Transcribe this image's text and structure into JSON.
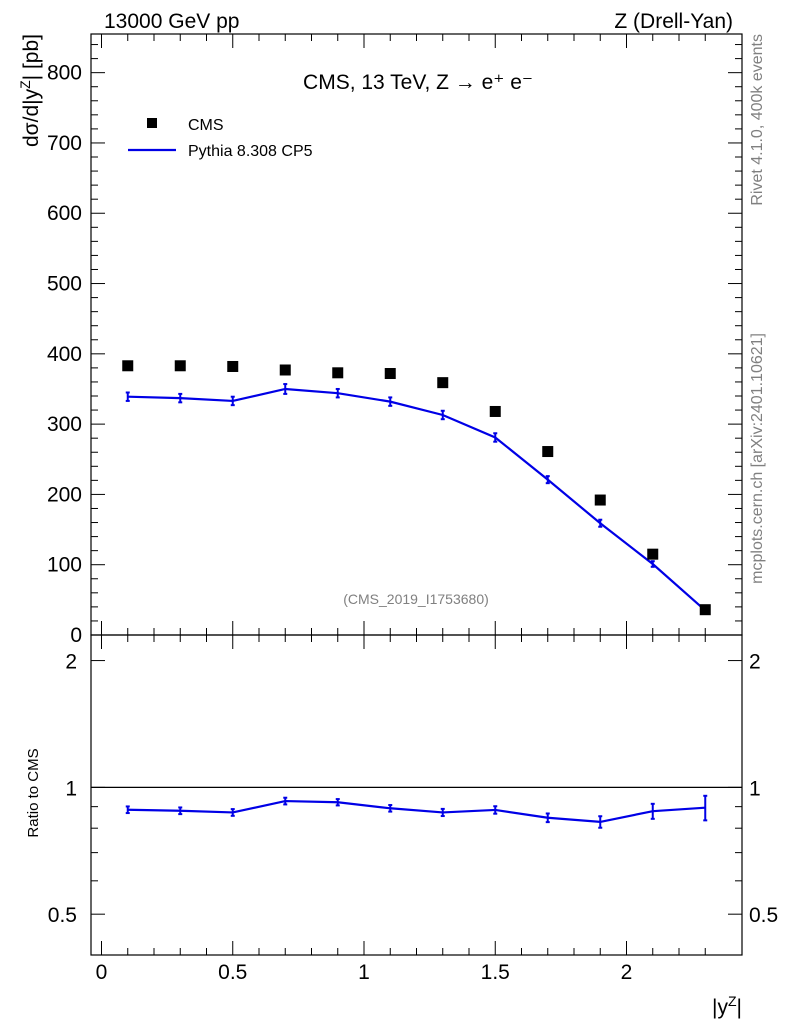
{
  "header": {
    "left": "13000 GeV pp",
    "right": "Z (Drell-Yan)"
  },
  "side": {
    "rivet": "Rivet 4.1.0,  400k events",
    "mcplots": "mcplots.cern.ch [arXiv:2401.10621]"
  },
  "plot_title": "CMS, 13 TeV, Z →  e⁺ e⁻",
  "analysis_id": "(CMS_2019_I1753680)",
  "legend": {
    "data": "CMS",
    "mc": "Pythia 8.308 CP5"
  },
  "colors": {
    "mc": "#0000e6",
    "data": "#000000",
    "side_text": "#808080"
  },
  "chart_data": [
    {
      "type": "scatter",
      "title": "CMS, 13 TeV, Z → e⁺ e⁻",
      "xlabel": "",
      "ylabel": "dσ/d|yᶻ| [pb]",
      "xlim": [
        -0.04,
        2.44
      ],
      "ylim": [
        0,
        855
      ],
      "yticks": [
        0,
        100,
        200,
        300,
        400,
        500,
        600,
        700,
        800
      ],
      "x": [
        0.1,
        0.3,
        0.5,
        0.7,
        0.9,
        1.1,
        1.3,
        1.5,
        1.7,
        1.9,
        2.1,
        2.3
      ],
      "series": [
        {
          "name": "CMS",
          "kind": "points",
          "values": [
            383,
            383,
            382,
            377,
            373,
            372,
            359,
            318,
            261,
            192,
            115,
            36
          ]
        },
        {
          "name": "Pythia 8.308 CP5",
          "kind": "line",
          "values": [
            339,
            337,
            333,
            350,
            344,
            332,
            313,
            281,
            221,
            159,
            101,
            35
          ],
          "errors": [
            6,
            6,
            6,
            7,
            6,
            6,
            6,
            6,
            5,
            5,
            4,
            2
          ]
        }
      ]
    },
    {
      "type": "line",
      "title": "",
      "xlabel": "|yᶻ|",
      "ylabel": "Ratio to CMS",
      "xlim": [
        -0.04,
        2.44
      ],
      "ylim": [
        0.4,
        2.3
      ],
      "yscale": "log",
      "yticks": [
        0.5,
        1,
        2
      ],
      "xticks": [
        0,
        0.5,
        1,
        1.5,
        2
      ],
      "x": [
        0.1,
        0.3,
        0.5,
        0.7,
        0.9,
        1.1,
        1.3,
        1.5,
        1.7,
        1.9,
        2.1,
        2.3
      ],
      "series": [
        {
          "name": "Pythia 8.308 CP5 / CMS",
          "values": [
            0.885,
            0.88,
            0.872,
            0.928,
            0.922,
            0.892,
            0.872,
            0.884,
            0.847,
            0.828,
            0.878,
            0.895
          ],
          "errors": [
            0.016,
            0.016,
            0.016,
            0.017,
            0.016,
            0.016,
            0.017,
            0.018,
            0.02,
            0.026,
            0.036,
            0.06
          ]
        }
      ],
      "reference_line": 1
    }
  ]
}
